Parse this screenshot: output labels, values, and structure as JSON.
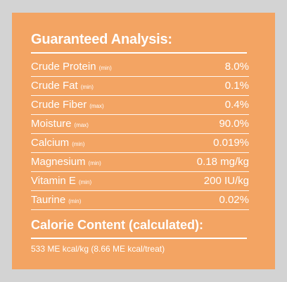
{
  "guaranteed_analysis": {
    "title": "Guaranteed Analysis:",
    "rows": [
      {
        "name": "Crude Protein",
        "qualifier": "(min)",
        "value": "8.0%"
      },
      {
        "name": "Crude Fat",
        "qualifier": "(min)",
        "value": "0.1%"
      },
      {
        "name": "Crude Fiber",
        "qualifier": "(max)",
        "value": "0.4%"
      },
      {
        "name": "Moisture",
        "qualifier": "(max)",
        "value": "90.0%"
      },
      {
        "name": "Calcium",
        "qualifier": "(min)",
        "value": "0.019%"
      },
      {
        "name": "Magnesium",
        "qualifier": "(min)",
        "value": "0.18 mg/kg"
      },
      {
        "name": "Vitamin E",
        "qualifier": "(min)",
        "value": "200 IU/kg"
      },
      {
        "name": "Taurine",
        "qualifier": "(min)",
        "value": "0.02%"
      }
    ]
  },
  "calorie_content": {
    "title": "Calorie Content (calculated):",
    "text": "533 ME kcal/kg (8.66 ME kcal/treat)"
  },
  "colors": {
    "panel": "#f3a463",
    "background": "#d3d3d3",
    "text": "#ffffff"
  }
}
